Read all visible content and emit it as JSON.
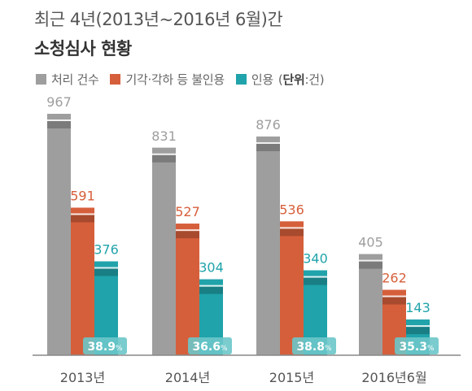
{
  "title": {
    "line1": "최근 4년(2013년~2016년 6월)간",
    "line2": "소청심사 현황"
  },
  "legend": {
    "unit_prefix": "(",
    "unit_label": "단위",
    "unit_suffix": ":건)"
  },
  "colors": {
    "processed": "#9e9e9e",
    "rejected": "#d65f3b",
    "accepted": "#20a3aa",
    "axis": "#888888",
    "rate_box": "#6cc6c9"
  },
  "chart_data": {
    "type": "bar",
    "categories": [
      "2013년",
      "2014년",
      "2015년",
      "2016년6월"
    ],
    "series": [
      {
        "name": "처리 건수",
        "color": "#9e9e9e",
        "values": [
          967,
          831,
          876,
          405
        ]
      },
      {
        "name": "기각·각하 등 불인용",
        "color": "#d65f3b",
        "values": [
          591,
          527,
          536,
          262
        ]
      },
      {
        "name": "인용",
        "color": "#20a3aa",
        "values": [
          376,
          304,
          340,
          143
        ]
      }
    ],
    "acceptance_rate": [
      "38.9",
      "36.6",
      "38.8",
      "35.3"
    ],
    "rate_unit": "%",
    "ylim": [
      0,
      1000
    ]
  }
}
